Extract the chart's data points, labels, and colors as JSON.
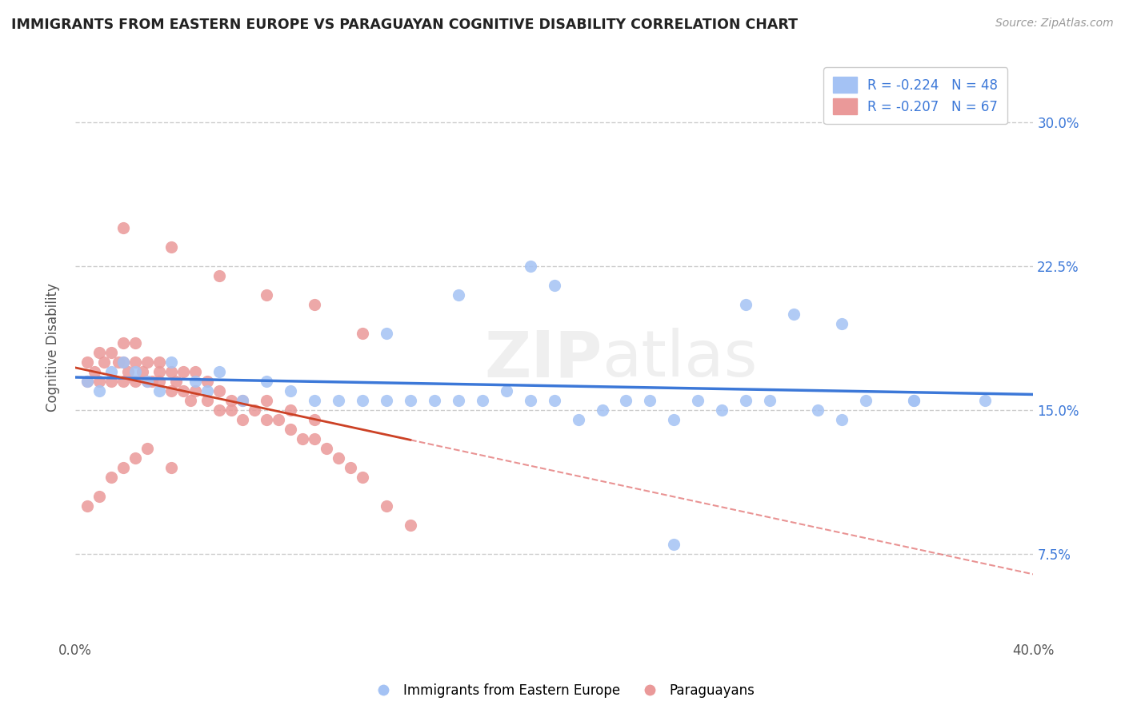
{
  "title": "IMMIGRANTS FROM EASTERN EUROPE VS PARAGUAYAN COGNITIVE DISABILITY CORRELATION CHART",
  "source": "Source: ZipAtlas.com",
  "ylabel": "Cognitive Disability",
  "y_ticks": [
    "7.5%",
    "15.0%",
    "22.5%",
    "30.0%"
  ],
  "y_tick_vals": [
    0.075,
    0.15,
    0.225,
    0.3
  ],
  "xlim": [
    0.0,
    0.4
  ],
  "ylim": [
    0.03,
    0.335
  ],
  "color_blue": "#a4c2f4",
  "color_blue_line": "#3c78d8",
  "color_pink": "#ea9999",
  "color_pink_line": "#cc4125",
  "color_pink_dash": "#e06666",
  "watermark": "ZIPAtlas",
  "blue_x": [
    0.005,
    0.01,
    0.015,
    0.02,
    0.025,
    0.03,
    0.035,
    0.04,
    0.05,
    0.055,
    0.06,
    0.07,
    0.08,
    0.09,
    0.1,
    0.11,
    0.12,
    0.13,
    0.14,
    0.15,
    0.16,
    0.17,
    0.18,
    0.19,
    0.2,
    0.21,
    0.22,
    0.23,
    0.24,
    0.25,
    0.26,
    0.27,
    0.28,
    0.29,
    0.3,
    0.31,
    0.32,
    0.33,
    0.35,
    0.38,
    0.16,
    0.2,
    0.28,
    0.32,
    0.35,
    0.25,
    0.19,
    0.13
  ],
  "blue_y": [
    0.165,
    0.16,
    0.17,
    0.175,
    0.17,
    0.165,
    0.16,
    0.175,
    0.165,
    0.16,
    0.17,
    0.155,
    0.165,
    0.16,
    0.155,
    0.155,
    0.155,
    0.155,
    0.155,
    0.155,
    0.155,
    0.155,
    0.16,
    0.155,
    0.155,
    0.145,
    0.15,
    0.155,
    0.155,
    0.145,
    0.155,
    0.15,
    0.155,
    0.155,
    0.2,
    0.15,
    0.145,
    0.155,
    0.155,
    0.155,
    0.21,
    0.215,
    0.205,
    0.195,
    0.155,
    0.08,
    0.225,
    0.19
  ],
  "pink_x": [
    0.005,
    0.005,
    0.008,
    0.01,
    0.01,
    0.012,
    0.015,
    0.015,
    0.018,
    0.02,
    0.02,
    0.02,
    0.022,
    0.025,
    0.025,
    0.025,
    0.028,
    0.03,
    0.03,
    0.032,
    0.035,
    0.035,
    0.035,
    0.04,
    0.04,
    0.042,
    0.045,
    0.045,
    0.048,
    0.05,
    0.05,
    0.055,
    0.055,
    0.06,
    0.06,
    0.065,
    0.065,
    0.07,
    0.07,
    0.075,
    0.08,
    0.08,
    0.085,
    0.09,
    0.09,
    0.095,
    0.1,
    0.1,
    0.105,
    0.11,
    0.115,
    0.12,
    0.13,
    0.14,
    0.02,
    0.04,
    0.06,
    0.08,
    0.1,
    0.12,
    0.005,
    0.01,
    0.015,
    0.02,
    0.025,
    0.03,
    0.04
  ],
  "pink_y": [
    0.165,
    0.175,
    0.17,
    0.165,
    0.18,
    0.175,
    0.165,
    0.18,
    0.175,
    0.165,
    0.175,
    0.185,
    0.17,
    0.165,
    0.175,
    0.185,
    0.17,
    0.165,
    0.175,
    0.165,
    0.17,
    0.165,
    0.175,
    0.16,
    0.17,
    0.165,
    0.16,
    0.17,
    0.155,
    0.16,
    0.17,
    0.155,
    0.165,
    0.15,
    0.16,
    0.15,
    0.155,
    0.145,
    0.155,
    0.15,
    0.145,
    0.155,
    0.145,
    0.14,
    0.15,
    0.135,
    0.135,
    0.145,
    0.13,
    0.125,
    0.12,
    0.115,
    0.1,
    0.09,
    0.245,
    0.235,
    0.22,
    0.21,
    0.205,
    0.19,
    0.1,
    0.105,
    0.115,
    0.12,
    0.125,
    0.13,
    0.12
  ]
}
